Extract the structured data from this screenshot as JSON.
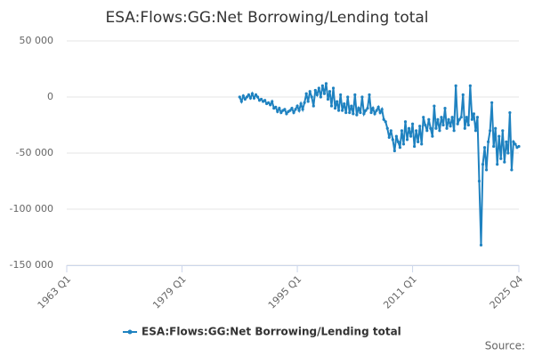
{
  "chart_data": {
    "type": "line",
    "title": "ESA:Flows:GG:Net Borrowing/Lending total",
    "x": [
      "1987 Q1",
      "1987 Q2",
      "1987 Q3",
      "1987 Q4",
      "1988 Q1",
      "1988 Q2",
      "1988 Q3",
      "1988 Q4",
      "1989 Q1",
      "1989 Q2",
      "1989 Q3",
      "1989 Q4",
      "1990 Q1",
      "1990 Q2",
      "1990 Q3",
      "1990 Q4",
      "1991 Q1",
      "1991 Q2",
      "1991 Q3",
      "1991 Q4",
      "1992 Q1",
      "1992 Q2",
      "1992 Q3",
      "1992 Q4",
      "1993 Q1",
      "1993 Q2",
      "1993 Q3",
      "1993 Q4",
      "1994 Q1",
      "1994 Q2",
      "1994 Q3",
      "1994 Q4",
      "1995 Q1",
      "1995 Q2",
      "1995 Q3",
      "1995 Q4",
      "1996 Q1",
      "1996 Q2",
      "1996 Q3",
      "1996 Q4",
      "1997 Q1",
      "1997 Q2",
      "1997 Q3",
      "1997 Q4",
      "1998 Q1",
      "1998 Q2",
      "1998 Q3",
      "1998 Q4",
      "1999 Q1",
      "1999 Q2",
      "1999 Q3",
      "1999 Q4",
      "2000 Q1",
      "2000 Q2",
      "2000 Q3",
      "2000 Q4",
      "2001 Q1",
      "2001 Q2",
      "2001 Q3",
      "2001 Q4",
      "2002 Q1",
      "2002 Q2",
      "2002 Q3",
      "2002 Q4",
      "2003 Q1",
      "2003 Q2",
      "2003 Q3",
      "2003 Q4",
      "2004 Q1",
      "2004 Q2",
      "2004 Q3",
      "2004 Q4",
      "2005 Q1",
      "2005 Q2",
      "2005 Q3",
      "2005 Q4",
      "2006 Q1",
      "2006 Q2",
      "2006 Q3",
      "2006 Q4",
      "2007 Q1",
      "2007 Q2",
      "2007 Q3",
      "2007 Q4",
      "2008 Q1",
      "2008 Q2",
      "2008 Q3",
      "2008 Q4",
      "2009 Q1",
      "2009 Q2",
      "2009 Q3",
      "2009 Q4",
      "2010 Q1",
      "2010 Q2",
      "2010 Q3",
      "2010 Q4",
      "2011 Q1",
      "2011 Q2",
      "2011 Q3",
      "2011 Q4",
      "2012 Q1",
      "2012 Q2",
      "2012 Q3",
      "2012 Q4",
      "2013 Q1",
      "2013 Q2",
      "2013 Q3",
      "2013 Q4",
      "2014 Q1",
      "2014 Q2",
      "2014 Q3",
      "2014 Q4",
      "2015 Q1",
      "2015 Q2",
      "2015 Q3",
      "2015 Q4",
      "2016 Q1",
      "2016 Q2",
      "2016 Q3",
      "2016 Q4",
      "2017 Q1",
      "2017 Q2",
      "2017 Q3",
      "2017 Q4",
      "2018 Q1",
      "2018 Q2",
      "2018 Q3",
      "2018 Q4",
      "2019 Q1",
      "2019 Q2",
      "2019 Q3",
      "2019 Q4",
      "2020 Q1",
      "2020 Q2",
      "2020 Q3",
      "2020 Q4",
      "2021 Q1",
      "2021 Q2",
      "2021 Q3",
      "2021 Q4",
      "2022 Q1",
      "2022 Q2",
      "2022 Q3",
      "2022 Q4",
      "2023 Q1",
      "2023 Q2",
      "2023 Q3",
      "2023 Q4",
      "2024 Q1",
      "2024 Q2",
      "2024 Q3",
      "2024 Q4",
      "2025 Q1",
      "2025 Q2",
      "2025 Q3",
      "2025 Q4"
    ],
    "series": [
      {
        "name": "ESA:Flows:GG:Net Borrowing/Lending total",
        "color": "#1f82c0",
        "values": [
          0,
          -4000,
          1000,
          -2000,
          0,
          2000,
          -1000,
          3000,
          -1000,
          2000,
          0,
          -3000,
          -2000,
          -4000,
          -3000,
          -6000,
          -5000,
          -7000,
          -4000,
          -10000,
          -9000,
          -13000,
          -10000,
          -14000,
          -12000,
          -11000,
          -15000,
          -13000,
          -12000,
          -10000,
          -14000,
          -11000,
          -8000,
          -12000,
          -6000,
          -11000,
          -5000,
          3000,
          -4000,
          5000,
          0,
          -8000,
          6000,
          2000,
          8000,
          0,
          10000,
          3000,
          12000,
          -2000,
          5000,
          -8000,
          8000,
          -10000,
          -4000,
          -12000,
          2000,
          -12000,
          -6000,
          -14000,
          0,
          -14000,
          -8000,
          -15000,
          2000,
          -16000,
          -10000,
          -14000,
          0,
          -15000,
          -12000,
          -10000,
          2000,
          -14000,
          -10000,
          -15000,
          -12000,
          -9000,
          -14000,
          -11000,
          -20000,
          -22000,
          -28000,
          -36000,
          -30000,
          -38000,
          -48000,
          -35000,
          -40000,
          -45000,
          -30000,
          -42000,
          -22000,
          -38000,
          -28000,
          -35000,
          -24000,
          -44000,
          -30000,
          -40000,
          -26000,
          -42000,
          -18000,
          -25000,
          -30000,
          -20000,
          -28000,
          -35000,
          -8000,
          -28000,
          -20000,
          -30000,
          -18000,
          -25000,
          -10000,
          -28000,
          -20000,
          -26000,
          -18000,
          -30000,
          10000,
          -24000,
          -20000,
          -18000,
          2000,
          -28000,
          -18000,
          -25000,
          10000,
          -20000,
          -15000,
          -30000,
          -18000,
          -75000,
          -132000,
          -60000,
          -45000,
          -65000,
          -40000,
          -30000,
          -5000,
          -44000,
          -28000,
          -60000,
          -35000,
          -55000,
          -30000,
          -58000,
          -40000,
          -50000,
          -14000,
          -65000,
          -40000,
          -42000,
          -45000,
          -44000
        ]
      }
    ],
    "xlim": [
      "1963 Q1",
      "2025 Q4"
    ],
    "xticks": [
      "1963 Q1",
      "1979 Q1",
      "1995 Q1",
      "2011 Q1",
      "2025 Q4"
    ],
    "ylim": [
      -150000,
      50000
    ],
    "yticks": [
      {
        "value": -150000,
        "label": "-150 000"
      },
      {
        "value": -100000,
        "label": "-100 000"
      },
      {
        "value": -50000,
        "label": "-50 000"
      },
      {
        "value": 0,
        "label": "0"
      },
      {
        "value": 50000,
        "label": "50 000"
      }
    ],
    "grid": true,
    "legend": "bottom",
    "source": "Source:"
  }
}
